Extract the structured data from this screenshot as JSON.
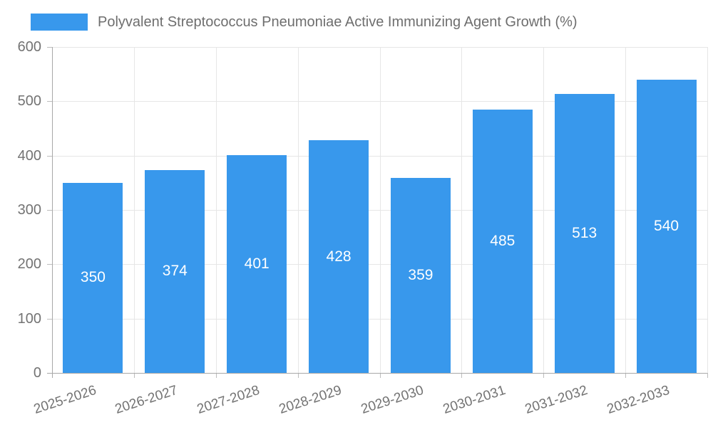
{
  "chart_data": {
    "type": "bar",
    "title": "Polyvalent Streptococcus Pneumoniae Active Immunizing Agent Growth (%)",
    "legend": {
      "position": "top",
      "entries": [
        "Polyvalent Streptococcus Pneumoniae Active Immunizing Agent Growth (%)"
      ]
    },
    "categories": [
      "2025-2026",
      "2026-2027",
      "2027-2028",
      "2028-2029",
      "2029-2030",
      "2030-2031",
      "2031-2032",
      "2032-2033"
    ],
    "values": [
      350,
      374,
      401,
      428,
      359,
      485,
      513,
      540
    ],
    "xlabel": "",
    "ylabel": "",
    "ylim": [
      0,
      600
    ],
    "yticks": [
      0,
      100,
      200,
      300,
      400,
      500,
      600
    ],
    "grid": true,
    "bar_value_labels_shown": true,
    "colors": {
      "bar": "#3898EC",
      "title_text": "#6E6E6E",
      "tick_text": "#737373",
      "gridline": "#E6E6E6",
      "axis_line": "#A8A8A8",
      "tick_mark": "#BDBDBD",
      "value_label": "#FFFFFF",
      "background": "#FFFFFF"
    }
  }
}
